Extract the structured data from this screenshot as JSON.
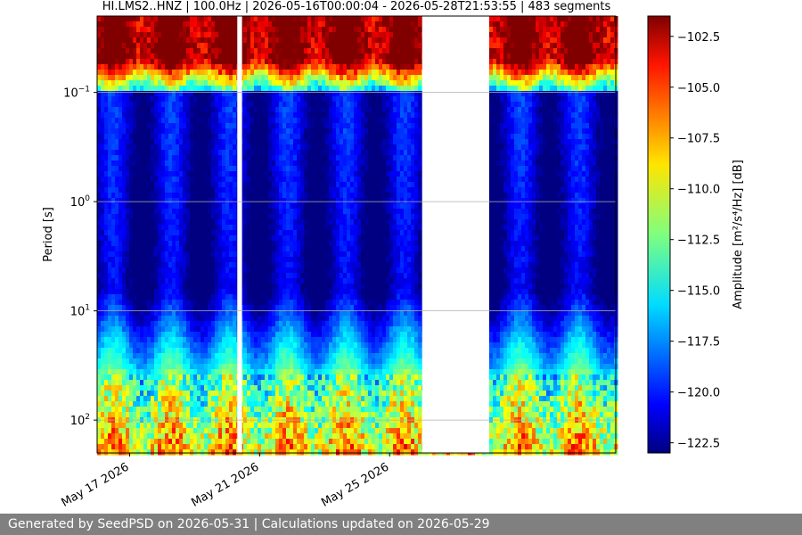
{
  "chart_data": {
    "type": "heatmap",
    "title": "HI.LMS2..HNZ | 100.0Hz | 2026-05-16T00:00:04 - 2026-05-28T21:53:55 | 483 segments",
    "ylabel": "Period [s]",
    "y_scale": "log",
    "y_inverted": true,
    "y_range": [
      0.02,
      200
    ],
    "y_ticks": [
      {
        "value": 0.1,
        "base": "10",
        "exp": "−1"
      },
      {
        "value": 1,
        "base": "10",
        "exp": "0"
      },
      {
        "value": 10,
        "base": "10",
        "exp": "1"
      },
      {
        "value": 100,
        "base": "10",
        "exp": "2"
      }
    ],
    "x_range": [
      "2026-05-16T00:00:04",
      "2026-05-31T23:00:00"
    ],
    "x_ticks": [
      {
        "date": "2026-05-17",
        "label": "May 17 2026"
      },
      {
        "date": "2026-05-21",
        "label": "May 21 2026"
      },
      {
        "date": "2026-05-25",
        "label": "May 25 2026"
      }
    ],
    "data_gaps": [
      [
        "2026-05-20T07:30",
        "2026-05-20T11:00"
      ],
      [
        "2026-05-26T00:00",
        "2026-05-28T01:30"
      ]
    ],
    "colorbar": {
      "label": "Amplitude [m²/s⁴/Hz] [dB]",
      "colormap": "jet",
      "range": [
        -123,
        -101.5
      ],
      "ticks": [
        "-102.5",
        "-105.0",
        "-107.5",
        "-110.0",
        "-112.5",
        "-115.0",
        "-117.5",
        "-120.0",
        "-122.5"
      ]
    },
    "grid": "horizontal"
  },
  "footer": "Generated by SeedPSD on 2026-05-31 | Calculations updated on 2026-05-29"
}
